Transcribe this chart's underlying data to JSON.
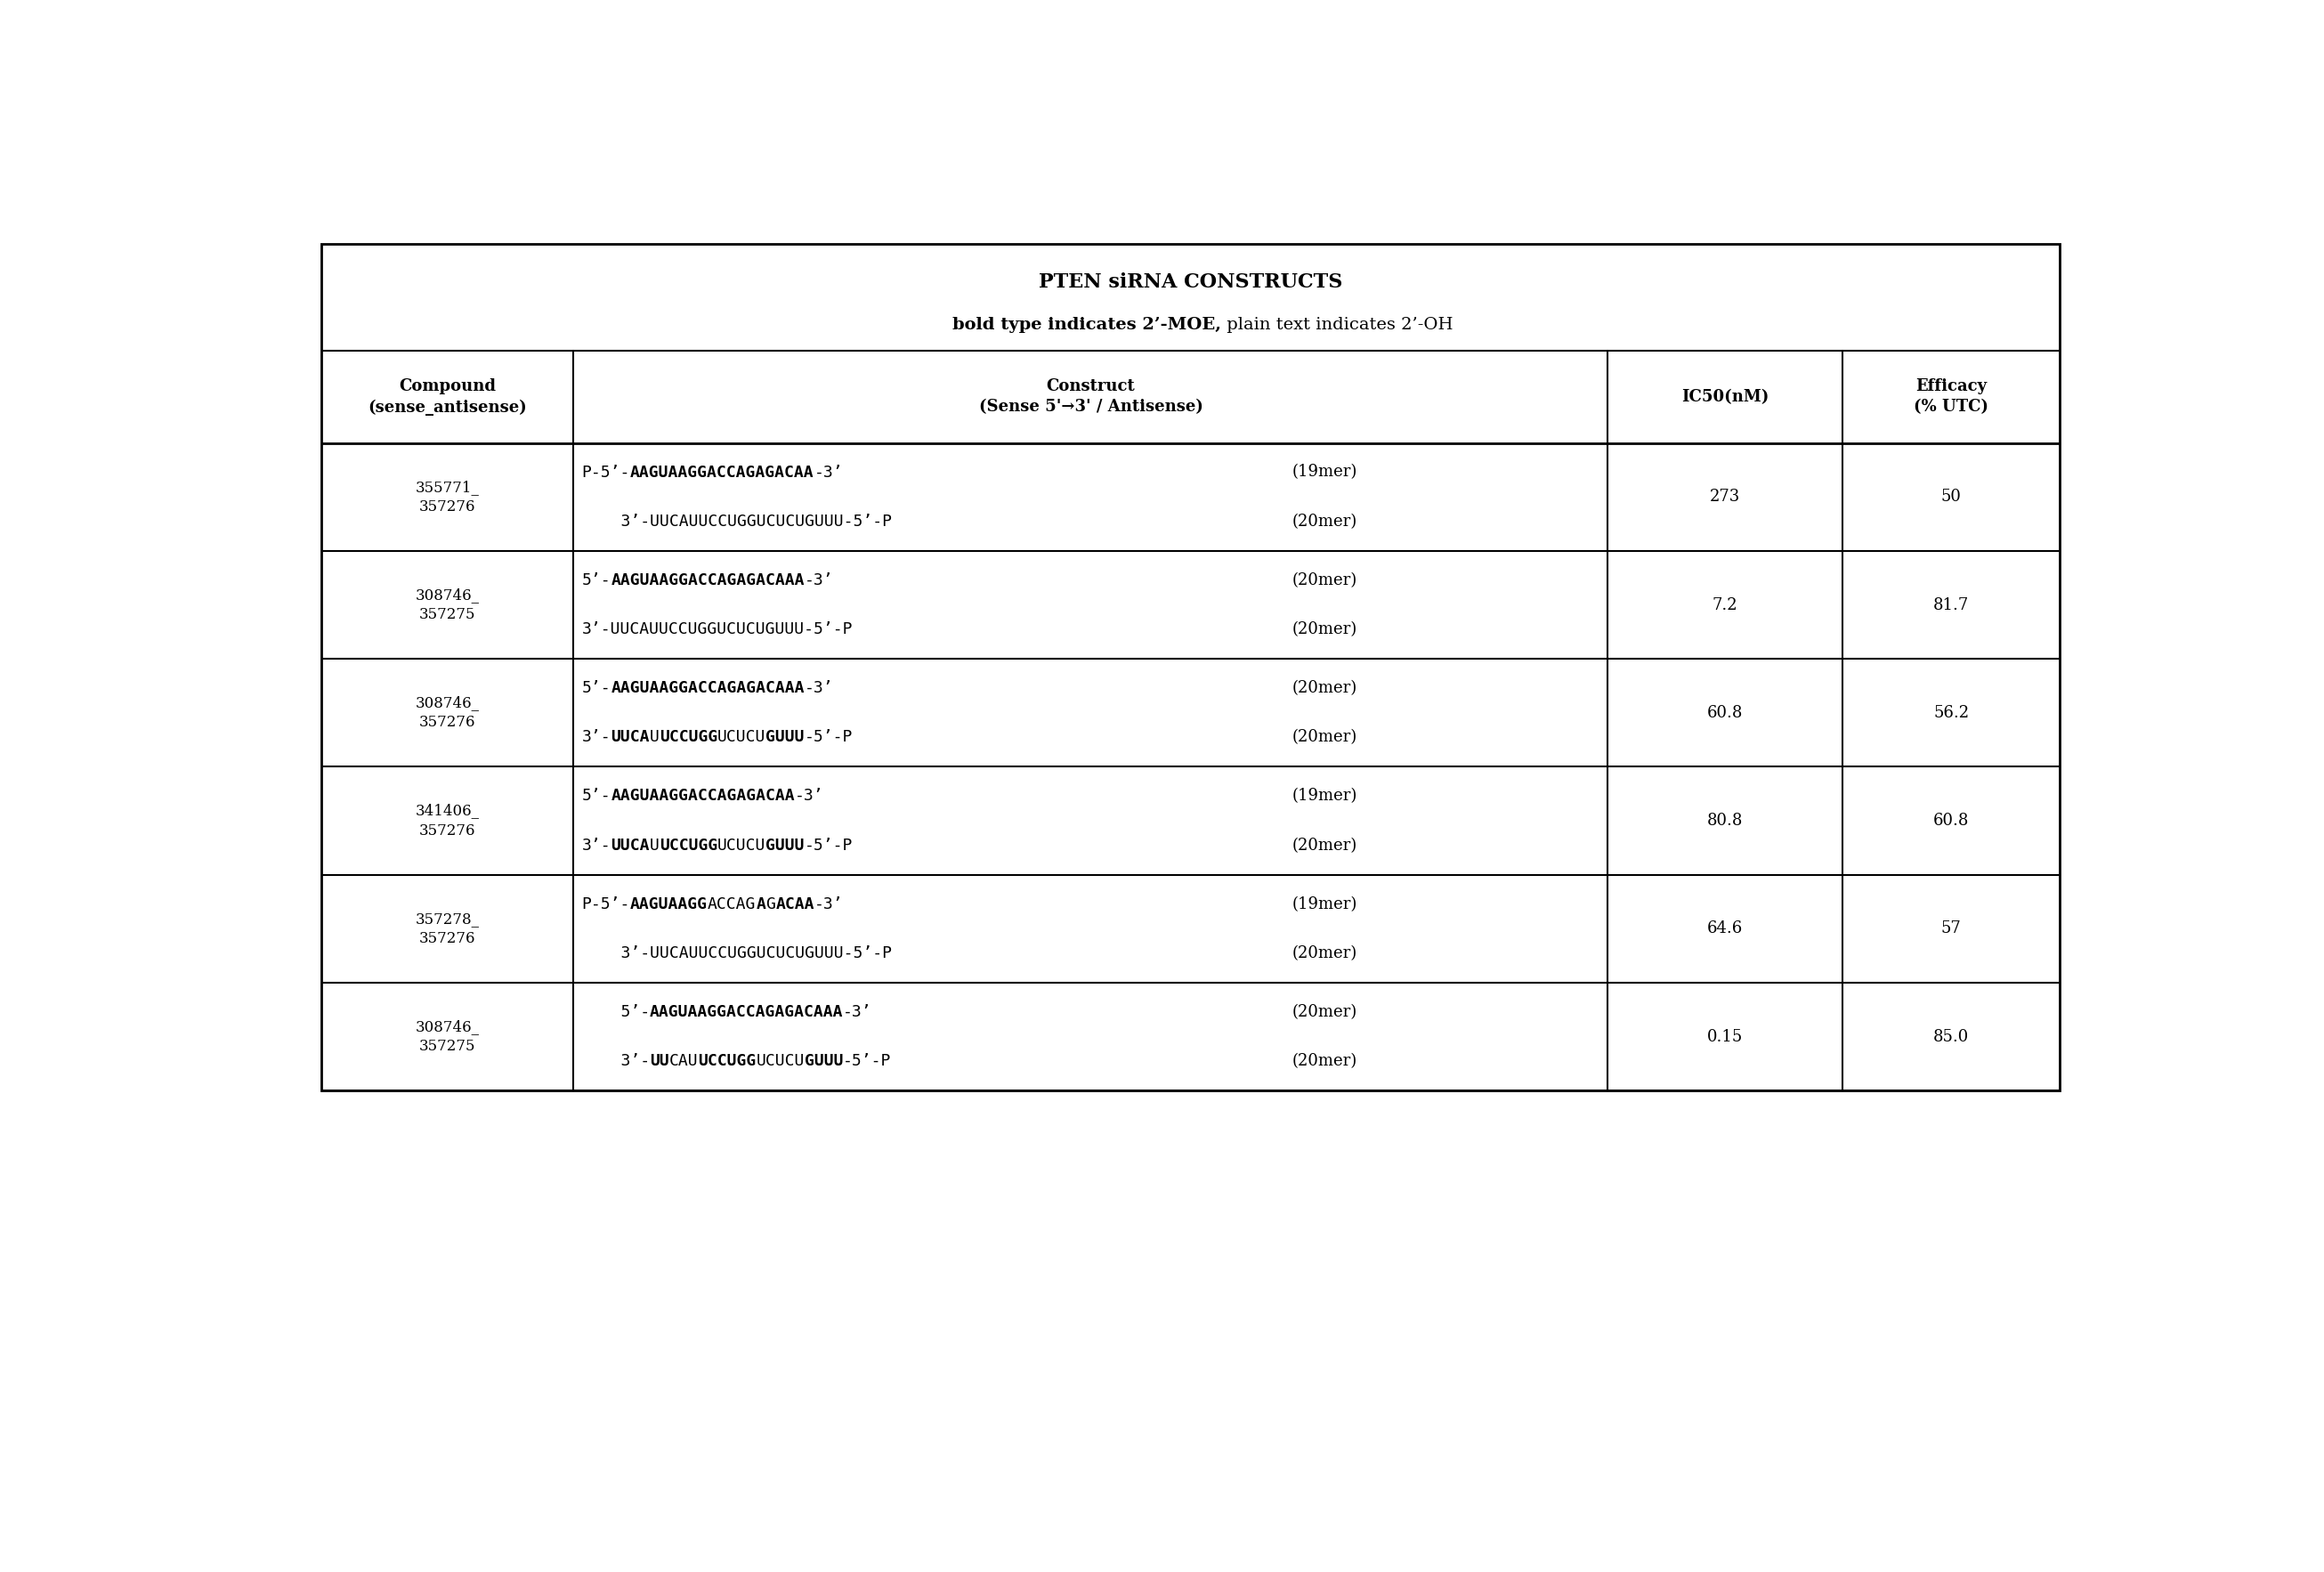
{
  "title": "PTEN siRNA CONSTRUCTS",
  "subtitle_bold": "bold type indicates 2’-MOE,",
  "subtitle_plain": " plain text indicates 2’-OH",
  "bg_color": "#ffffff",
  "border_color": "#000000",
  "text_color": "#000000",
  "font_size": 13,
  "header_font_size": 13,
  "title_font_size": 16,
  "rows": [
    {
      "compound": "355771_357276",
      "sense_parts": [
        [
          "P-5’-",
          false
        ],
        [
          "AAGUAAGGACCAGAGACAA",
          true
        ],
        [
          "-3’",
          false
        ]
      ],
      "antisense_parts": [
        [
          "    3’-UUCAUUCCUGGUCUCUGUUU-5’-P",
          false
        ]
      ],
      "sense_mer": "(19mer)",
      "antisense_mer": "(20mer)",
      "ic50": "273",
      "efficacy": "50"
    },
    {
      "compound": "308746_357275",
      "sense_parts": [
        [
          "5’-",
          false
        ],
        [
          "AAGUAAGGACCAGAGACAAA",
          true
        ],
        [
          "-3’",
          false
        ]
      ],
      "antisense_parts": [
        [
          "3’-UUCAUUCCUGGUCUCUGUUU-5’-P",
          false
        ]
      ],
      "sense_mer": "(20mer)",
      "antisense_mer": "(20mer)",
      "ic50": "7.2",
      "efficacy": "81.7"
    },
    {
      "compound": "308746_357276",
      "sense_parts": [
        [
          "5’-",
          false
        ],
        [
          "AAGUAAGGACCAGAGACAAA",
          true
        ],
        [
          "-3’",
          false
        ]
      ],
      "antisense_parts": [
        [
          "3’-",
          false
        ],
        [
          "UUCA",
          true
        ],
        [
          "U",
          false
        ],
        [
          "UCCUGG",
          true
        ],
        [
          "UCUCU",
          false
        ],
        [
          "GUUU",
          true
        ],
        [
          "-5’-P",
          false
        ]
      ],
      "sense_mer": "(20mer)",
      "antisense_mer": "(20mer)",
      "ic50": "60.8",
      "efficacy": "56.2"
    },
    {
      "compound": "341406_357276",
      "sense_parts": [
        [
          "5’-",
          false
        ],
        [
          "AAGUAAGGACCAGAGACAA",
          true
        ],
        [
          "-3’",
          false
        ]
      ],
      "antisense_parts": [
        [
          "3’-",
          false
        ],
        [
          "UUCA",
          true
        ],
        [
          "U",
          false
        ],
        [
          "UCCUGG",
          true
        ],
        [
          "UCUCU",
          false
        ],
        [
          "GUUU",
          true
        ],
        [
          "-5’-P",
          false
        ]
      ],
      "sense_mer": "(19mer)",
      "antisense_mer": "(20mer)",
      "ic50": "80.8",
      "efficacy": "60.8"
    },
    {
      "compound": "357278_357276",
      "sense_parts": [
        [
          "P-5’-",
          false
        ],
        [
          "AAGUAAGG",
          true
        ],
        [
          "ACCAG",
          false
        ],
        [
          "A",
          true
        ],
        [
          "G",
          false
        ],
        [
          "ACAA",
          true
        ],
        [
          "-3’",
          false
        ]
      ],
      "antisense_parts": [
        [
          "    3’-UUCAUUCCUGGUCUCUGUUU-5’-P",
          false
        ]
      ],
      "sense_mer": "(19mer)",
      "antisense_mer": "(20mer)",
      "ic50": "64.6",
      "efficacy": "57"
    },
    {
      "compound": "308746_357275",
      "sense_parts": [
        [
          "    5’-",
          false
        ],
        [
          "AAGUAAGGACCAGAGACAAA",
          true
        ],
        [
          "-3’",
          false
        ]
      ],
      "antisense_parts": [
        [
          "    3’-",
          false
        ],
        [
          "UU",
          true
        ],
        [
          "CAU",
          false
        ],
        [
          "UCCUGG",
          true
        ],
        [
          "UCUCU",
          false
        ],
        [
          "GUUU",
          true
        ],
        [
          "-5’-P",
          false
        ]
      ],
      "sense_mer": "(20mer)",
      "antisense_mer": "(20mer)",
      "ic50": "0.15",
      "efficacy": "85.0"
    }
  ]
}
